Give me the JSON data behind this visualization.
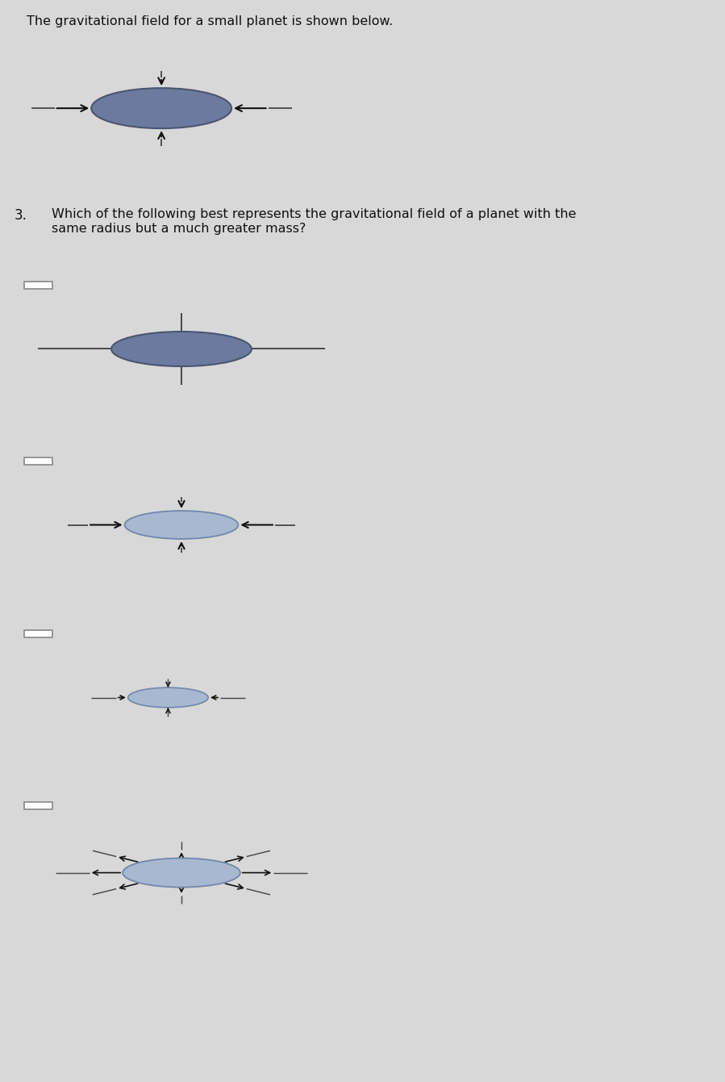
{
  "bg_top_color": "#b8cce4",
  "bg_main_color": "#d8d8d8",
  "panel_bg_white": "#f2f2f2",
  "panel_bg_blue": "#dce8f5",
  "planet_color_dark": "#6b7a9e",
  "planet_color_light": "#a8b8d0",
  "header_text": "The gravitational field for a small planet is shown below.",
  "question_num": "3.",
  "question_text": "Which of the following best represents the gravitational field of a planet with the\nsame radius but a much greater mass?",
  "arrow_color": "#111111",
  "line_color": "#444444",
  "border_color": "#999999",
  "checkbox_color": "#ffffff"
}
